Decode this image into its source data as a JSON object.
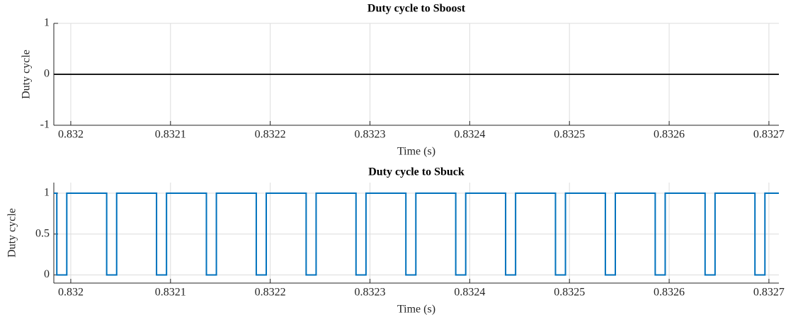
{
  "chart_data": [
    {
      "type": "line",
      "title": "Duty cycle to Sboost",
      "xlabel": "Time (s)",
      "ylabel": "Duty cycle",
      "xlim": [
        0.831983,
        0.83271
      ],
      "xticks": [
        0.832,
        0.8321,
        0.8322,
        0.8323,
        0.8324,
        0.8325,
        0.8326,
        0.8327
      ],
      "ylim": [
        -1,
        1
      ],
      "yticks": [
        -1,
        0,
        1
      ],
      "grid": true,
      "series": [
        {
          "color": "#1a1a1a",
          "x": [
            0.831983,
            0.83271
          ],
          "values": [
            0,
            0
          ]
        }
      ]
    },
    {
      "type": "line",
      "title": "Duty cycle to Sbuck",
      "xlabel": "Time (s)",
      "ylabel": "Duty cycle",
      "xlim": [
        0.831983,
        0.83271
      ],
      "xticks": [
        0.832,
        0.8321,
        0.8322,
        0.8323,
        0.8324,
        0.8325,
        0.8326,
        0.8327
      ],
      "ylim": [
        -0.1,
        1.13
      ],
      "yticks": [
        0,
        0.5,
        1
      ],
      "grid": true,
      "series": [
        {
          "color": "#0072bd",
          "x": [
            0.831983,
            0.831986,
            0.831986,
            0.831996,
            0.831996,
            0.832036,
            0.832036,
            0.832046,
            0.832046,
            0.832086,
            0.832086,
            0.832096,
            0.832096,
            0.832136,
            0.832136,
            0.832146,
            0.832146,
            0.832186,
            0.832186,
            0.832196,
            0.832196,
            0.832236,
            0.832236,
            0.832246,
            0.832246,
            0.832286,
            0.832286,
            0.832296,
            0.832296,
            0.832336,
            0.832336,
            0.832346,
            0.832346,
            0.832386,
            0.832386,
            0.832396,
            0.832396,
            0.832436,
            0.832436,
            0.832446,
            0.832446,
            0.832486,
            0.832486,
            0.832496,
            0.832496,
            0.832536,
            0.832536,
            0.832546,
            0.832546,
            0.832586,
            0.832586,
            0.832596,
            0.832596,
            0.832636,
            0.832636,
            0.832646,
            0.832646,
            0.832686,
            0.832686,
            0.832696,
            0.832696,
            0.83271
          ],
          "values": [
            1,
            1,
            0,
            0,
            1,
            1,
            0,
            0,
            1,
            1,
            0,
            0,
            1,
            1,
            0,
            0,
            1,
            1,
            0,
            0,
            1,
            1,
            0,
            0,
            1,
            1,
            0,
            0,
            1,
            1,
            0,
            0,
            1,
            1,
            0,
            0,
            1,
            1,
            0,
            0,
            1,
            1,
            0,
            0,
            1,
            1,
            0,
            0,
            1,
            1,
            0,
            0,
            1,
            1,
            0,
            0,
            1,
            1,
            0,
            0,
            1,
            1
          ]
        }
      ]
    }
  ]
}
